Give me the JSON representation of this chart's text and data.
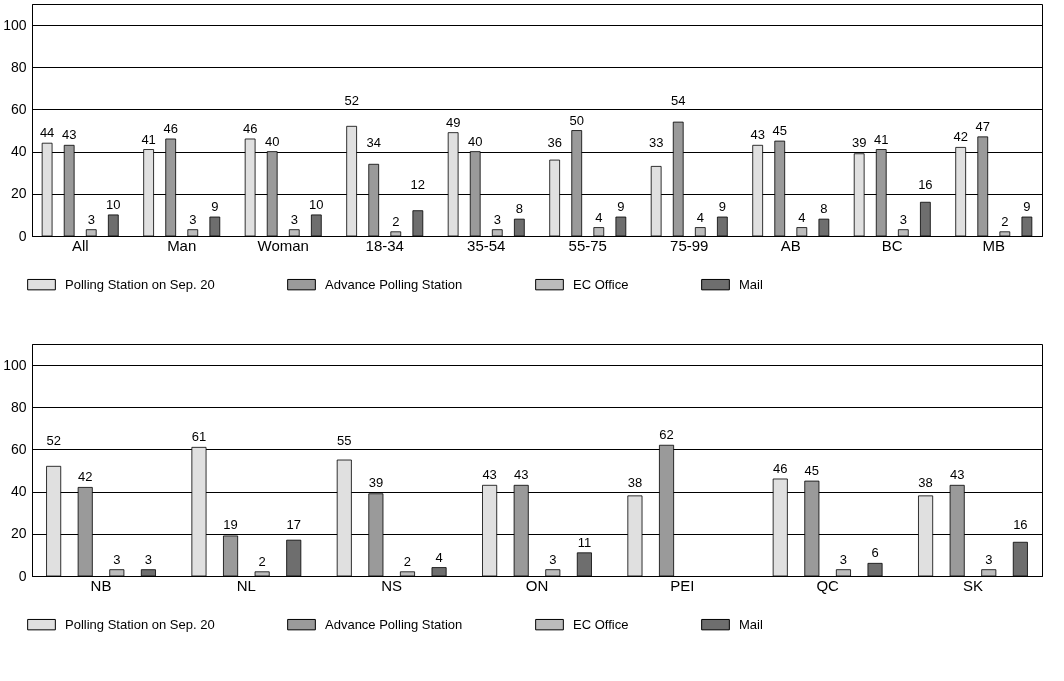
{
  "chart_data": [
    {
      "type": "bar",
      "categories": [
        "All",
        "Man",
        "Woman",
        "18-34",
        "35-54",
        "55-75",
        "75-99",
        "AB",
        "BC",
        "MB"
      ],
      "series": [
        {
          "name": "Polling Station on Sep. 20",
          "color": "#e0e0e0",
          "values": [
            44,
            41,
            46,
            52,
            49,
            36,
            33,
            43,
            39,
            42
          ]
        },
        {
          "name": "Advance Polling Station",
          "color": "#9a9a9a",
          "values": [
            43,
            46,
            40,
            34,
            40,
            50,
            54,
            45,
            41,
            47
          ]
        },
        {
          "name": "EC Office",
          "color": "#bcbcbc",
          "values": [
            3,
            3,
            3,
            2,
            3,
            4,
            4,
            4,
            3,
            2
          ]
        },
        {
          "name": "Mail",
          "color": "#6e6e6e",
          "values": [
            10,
            9,
            10,
            12,
            8,
            9,
            9,
            8,
            16,
            9
          ]
        }
      ],
      "ylim": [
        0,
        110
      ],
      "yticks": [
        0,
        20,
        40,
        60,
        80,
        100
      ],
      "grid": "y",
      "legend": "bottom",
      "data_labels": true
    },
    {
      "type": "bar",
      "categories": [
        "NB",
        "NL",
        "NS",
        "ON",
        "PEI",
        "QC",
        "SK"
      ],
      "series": [
        {
          "name": "Polling Station on Sep. 20",
          "color": "#e0e0e0",
          "values": [
            52,
            61,
            55,
            43,
            38,
            46,
            38
          ]
        },
        {
          "name": "Advance Polling Station",
          "color": "#9a9a9a",
          "values": [
            42,
            19,
            39,
            43,
            62,
            45,
            43
          ]
        },
        {
          "name": "EC Office",
          "color": "#bcbcbc",
          "values": [
            3,
            2,
            2,
            3,
            null,
            3,
            3
          ]
        },
        {
          "name": "Mail",
          "color": "#6e6e6e",
          "values": [
            3,
            17,
            4,
            11,
            null,
            6,
            16
          ]
        }
      ],
      "ylim": [
        0,
        110
      ],
      "yticks": [
        0,
        20,
        40,
        60,
        80,
        100
      ],
      "grid": "y",
      "legend": "bottom",
      "data_labels": true
    }
  ]
}
